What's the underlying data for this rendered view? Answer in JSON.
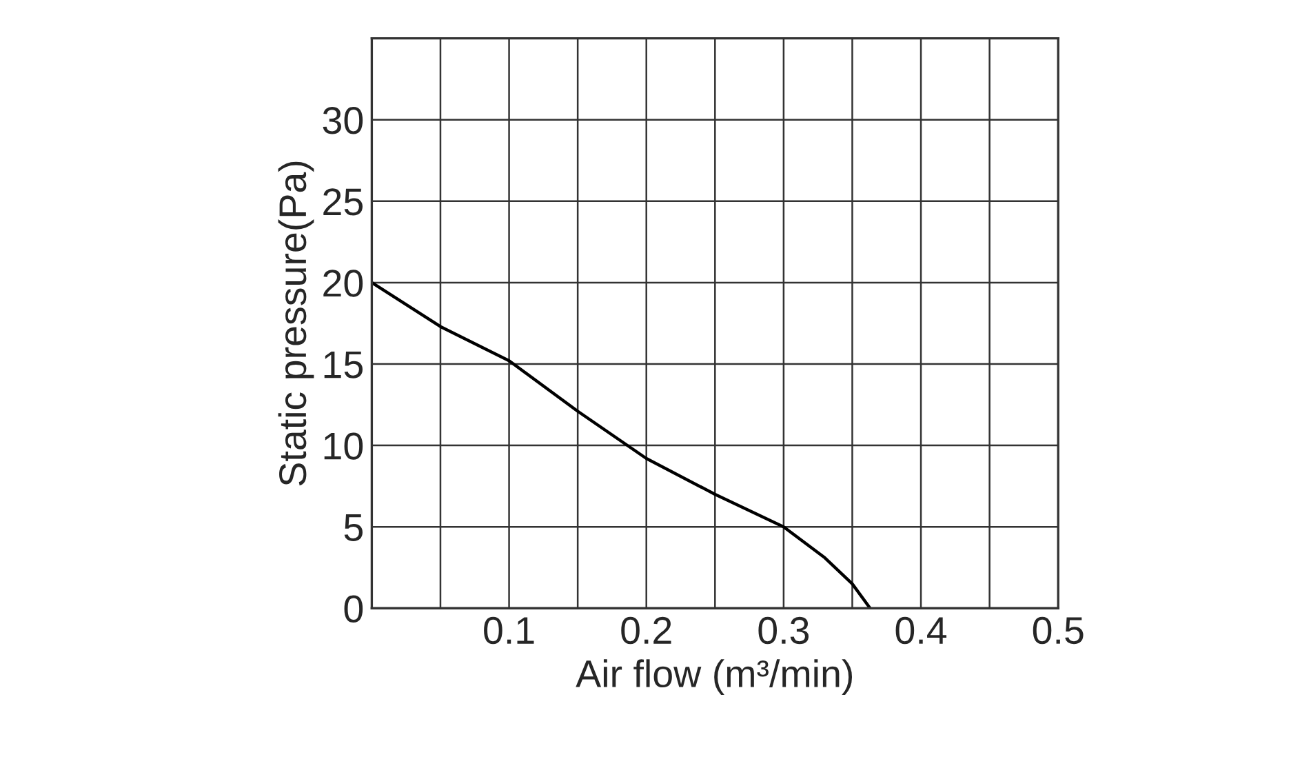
{
  "chart_data": {
    "type": "line",
    "xlabel": "Air flow (m³/min)",
    "ylabel": "Static pressure(Pa)",
    "series": [
      {
        "color": "#000000",
        "x": [
          0,
          0.05,
          0.1,
          0.15,
          0.2,
          0.25,
          0.3,
          0.33,
          0.35,
          0.363
        ],
        "values": [
          20,
          17.3,
          15.2,
          12.1,
          9.2,
          7,
          5,
          3.1,
          1.5,
          0
        ]
      }
    ],
    "xlim": [
      0,
      0.5
    ],
    "ylim": [
      0,
      35
    ],
    "xticks": [
      {
        "value": 0,
        "label": null
      },
      {
        "value": 0.05,
        "label": null
      },
      0.1,
      {
        "value": 0.15,
        "label": null
      },
      0.2,
      {
        "value": 0.25,
        "label": null
      },
      0.3,
      {
        "value": 0.35,
        "label": null
      },
      0.4,
      {
        "value": 0.45,
        "label": null
      },
      0.5
    ],
    "yticks": [
      0,
      5,
      10,
      15,
      20,
      25,
      30,
      {
        "value": 35,
        "label": null
      }
    ],
    "grid": true,
    "marker": "none",
    "line_style": "solid"
  }
}
